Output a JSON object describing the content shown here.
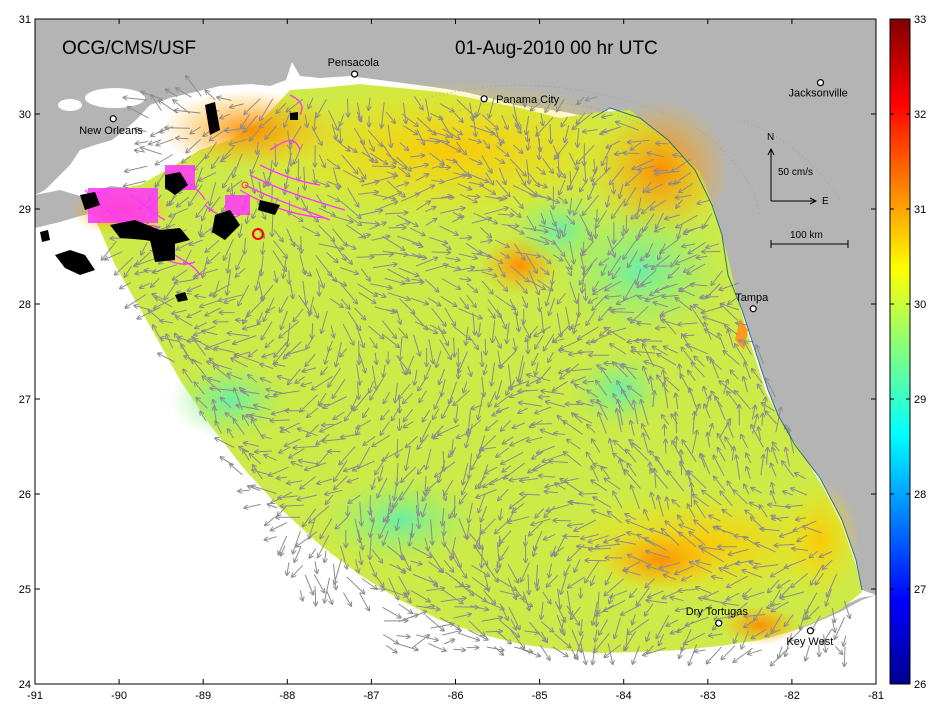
{
  "header": {
    "org_label": "OCG/CMS/USF",
    "timestamp": "01-Aug-2010 00 hr UTC"
  },
  "axes": {
    "x_ticks": [
      "-91",
      "-90",
      "-89",
      "-88",
      "-87",
      "-86",
      "-85",
      "-84",
      "-83",
      "-82",
      "-81"
    ],
    "y_ticks": [
      "31",
      "30",
      "29",
      "28",
      "27",
      "26",
      "25",
      "24"
    ],
    "x_range": [
      -91,
      -81
    ],
    "y_range": [
      24,
      31
    ]
  },
  "colorbar": {
    "ticks": [
      "33",
      "32",
      "31",
      "30",
      "29",
      "28",
      "27",
      "26"
    ],
    "range": [
      26,
      33
    ],
    "colormap": "jet"
  },
  "cities": [
    {
      "name": "Pensacola",
      "lon": -87.2,
      "lat": 30.42
    },
    {
      "name": "Panama City",
      "lon": -85.66,
      "lat": 30.16
    },
    {
      "name": "Jacksonville",
      "lon": -81.66,
      "lat": 30.33
    },
    {
      "name": "New Orleans",
      "lon": -90.07,
      "lat": 29.95
    },
    {
      "name": "Tampa",
      "lon": -82.46,
      "lat": 27.95
    },
    {
      "name": "Dry Tortugas",
      "lon": -82.87,
      "lat": 24.64
    },
    {
      "name": "Key West",
      "lon": -81.78,
      "lat": 24.56
    }
  ],
  "compass": {
    "north": "N",
    "east": "E",
    "velocity_label": "50 cm/s"
  },
  "scale_bar": {
    "label": "100 km"
  },
  "colors": {
    "land": "#b4b4b4",
    "vectors": "#8c8c8c",
    "oil_tracks": "#ff33ff",
    "particles": "#000000",
    "release_marker": "#ff0000"
  }
}
